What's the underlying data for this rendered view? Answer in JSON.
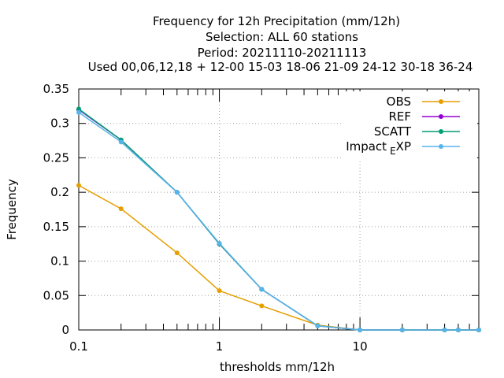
{
  "chart_data": {
    "type": "line",
    "title_lines": [
      "Frequency  for 12h Precipitation (mm/12h)",
      "Selection: ALL     60 stations",
      "Period: 20211110-20211113",
      "Used  00,06,12,18 + 12-00 15-03 18-06 21-09 24-12 30-18 36-24"
    ],
    "xlabel": "thresholds mm/12h",
    "ylabel": "Frequency",
    "xscale": "log",
    "xlim": [
      0.1,
      70
    ],
    "ylim": [
      0,
      0.35
    ],
    "x_ticks": [
      "0.1",
      "1",
      "10"
    ],
    "y_ticks": [
      "0",
      "0.05",
      "0.1",
      "0.15",
      "0.2",
      "0.25",
      "0.3",
      "0.35"
    ],
    "grid": "dotted at major ticks",
    "legend_position": "top-right",
    "x": [
      0.1,
      0.2,
      0.5,
      1,
      2,
      5,
      10,
      20,
      40,
      50,
      70
    ],
    "series": [
      {
        "name": "OBS",
        "color": "#e69f00",
        "marker": "filled-circle",
        "values": [
          0.21,
          0.176,
          0.112,
          0.057,
          0.035,
          0.007,
          0.0,
          0.0,
          0.0,
          0.0,
          0.0
        ]
      },
      {
        "name": "REF",
        "color": "#9400d3",
        "marker": "filled-circle",
        "values": [
          0.32,
          0.276,
          0.2,
          0.125,
          0.059,
          0.006,
          0.0,
          0.0,
          0.0,
          0.0,
          0.0
        ]
      },
      {
        "name": "SCATT",
        "color": "#009e73",
        "marker": "filled-circle",
        "values": [
          0.321,
          0.276,
          0.2,
          0.125,
          0.059,
          0.006,
          0.0,
          0.0,
          0.0,
          0.0,
          0.0
        ]
      },
      {
        "name": "Impact_EXP",
        "label_main": "Impact",
        "label_sub": "E",
        "label_tail": "XP",
        "color": "#56b4e9",
        "marker": "filled-circle",
        "values": [
          0.316,
          0.273,
          0.2,
          0.126,
          0.059,
          0.006,
          0.0,
          0.0,
          0.0,
          0.0,
          0.0
        ]
      }
    ]
  }
}
